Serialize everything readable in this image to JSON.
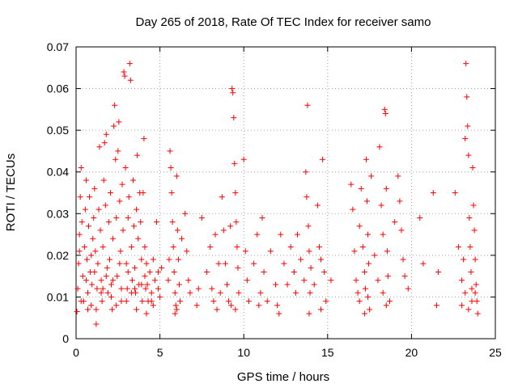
{
  "chart_data": {
    "type": "scatter",
    "title": "Day 265 of 2018, Rate Of TEC Index for receiver samo",
    "xlabel": "GPS time / hours",
    "ylabel": "ROTI / TECUs",
    "xlim": [
      0,
      25
    ],
    "ylim": [
      0,
      0.07
    ],
    "xticks": [
      "0",
      "5",
      "10",
      "15",
      "20",
      "25"
    ],
    "yticks": [
      "0",
      "0.01",
      "0.02",
      "0.03",
      "0.04",
      "0.05",
      "0.06",
      "0.07"
    ],
    "grid": true,
    "marker": "plus",
    "color": "#ff0000",
    "series": [
      {
        "points": [
          [
            0.05,
            0.0065
          ],
          [
            0.1,
            0.012
          ],
          [
            0.15,
            0.018
          ],
          [
            0.2,
            0.025
          ],
          [
            0.25,
            0.034
          ],
          [
            0.3,
            0.041
          ],
          [
            0.35,
            0.028
          ],
          [
            0.4,
            0.015
          ],
          [
            0.45,
            0.009
          ],
          [
            0.5,
            0.022
          ],
          [
            0.55,
            0.031
          ],
          [
            0.6,
            0.038
          ],
          [
            0.65,
            0.019
          ],
          [
            0.7,
            0.011
          ],
          [
            0.75,
            0.027
          ],
          [
            0.8,
            0.034
          ],
          [
            0.85,
            0.016
          ],
          [
            0.9,
            0.008
          ],
          [
            0.95,
            0.013
          ],
          [
            1.0,
            0.024
          ],
          [
            1.05,
            0.029
          ],
          [
            1.1,
            0.036
          ],
          [
            1.15,
            0.021
          ],
          [
            1.2,
            0.0035
          ],
          [
            1.25,
            0.012
          ],
          [
            1.3,
            0.018
          ],
          [
            1.35,
            0.031
          ],
          [
            1.4,
            0.046
          ],
          [
            1.45,
            0.026
          ],
          [
            1.5,
            0.014
          ],
          [
            1.55,
            0.009
          ],
          [
            1.6,
            0.022
          ],
          [
            1.65,
            0.038
          ],
          [
            1.7,
            0.047
          ],
          [
            1.75,
            0.032
          ],
          [
            1.8,
            0.049
          ],
          [
            1.85,
            0.017
          ],
          [
            1.9,
            0.011
          ],
          [
            1.95,
            0.028
          ],
          [
            2.0,
            0.019
          ],
          [
            2.05,
            0.035
          ],
          [
            2.1,
            0.013
          ],
          [
            2.15,
            0.007
          ],
          [
            2.2,
            0.024
          ],
          [
            2.25,
            0.051
          ],
          [
            2.3,
            0.056
          ],
          [
            2.35,
            0.043
          ],
          [
            2.4,
            0.029
          ],
          [
            2.45,
            0.015
          ],
          [
            2.5,
            0.045
          ],
          [
            2.55,
            0.052
          ],
          [
            2.6,
            0.033
          ],
          [
            2.65,
            0.021
          ],
          [
            2.7,
            0.009
          ],
          [
            2.75,
            0.037
          ],
          [
            2.8,
            0.026
          ],
          [
            2.85,
            0.064
          ],
          [
            2.9,
            0.063
          ],
          [
            2.95,
            0.041
          ],
          [
            3.0,
            0.018
          ],
          [
            3.05,
            0.012
          ],
          [
            3.1,
            0.029
          ],
          [
            3.15,
            0.034
          ],
          [
            3.2,
            0.066
          ],
          [
            3.25,
            0.062
          ],
          [
            3.3,
            0.022
          ],
          [
            3.35,
            0.014
          ],
          [
            3.4,
            0.038
          ],
          [
            3.45,
            0.027
          ],
          [
            3.5,
            0.017
          ],
          [
            3.55,
            0.011
          ],
          [
            3.6,
            0.031
          ],
          [
            3.65,
            0.044
          ],
          [
            3.7,
            0.024
          ],
          [
            3.75,
            0.013
          ],
          [
            3.8,
            0.035
          ],
          [
            3.85,
            0.028
          ],
          [
            3.9,
            0.019
          ],
          [
            3.95,
            0.009
          ],
          [
            4.0,
            0.035
          ],
          [
            4.05,
            0.048
          ],
          [
            4.1,
            0.022
          ],
          [
            4.15,
            0.012
          ],
          [
            4.2,
            0.018
          ],
          [
            4.25,
            0.013
          ],
          [
            4.3,
            0.009
          ],
          [
            4.4,
            0.016
          ],
          [
            4.5,
            0.011
          ],
          [
            4.6,
            0.019
          ],
          [
            4.7,
            0.014
          ],
          [
            4.8,
            0.028
          ],
          [
            4.9,
            0.012
          ],
          [
            5.0,
            0.01
          ],
          [
            5.1,
            0.017
          ],
          [
            0.3,
            0.009
          ],
          [
            0.6,
            0.014
          ],
          [
            0.9,
            0.02
          ],
          [
            1.2,
            0.007
          ],
          [
            1.5,
            0.011
          ],
          [
            1.8,
            0.015
          ],
          [
            2.1,
            0.01
          ],
          [
            2.4,
            0.008
          ],
          [
            2.7,
            0.012
          ],
          [
            3.0,
            0.009
          ],
          [
            3.3,
            0.011
          ],
          [
            3.6,
            0.007
          ],
          [
            3.9,
            0.013
          ],
          [
            4.2,
            0.006
          ],
          [
            4.5,
            0.009
          ],
          [
            0.2,
            0.021
          ],
          [
            0.7,
            0.007
          ],
          [
            1.1,
            0.016
          ],
          [
            1.6,
            0.012
          ],
          [
            2.2,
            0.014
          ],
          [
            2.6,
            0.018
          ],
          [
            3.1,
            0.016
          ],
          [
            3.5,
            0.012
          ],
          [
            4.1,
            0.015
          ],
          [
            4.6,
            0.008
          ],
          [
            4.9,
            0.016
          ],
          [
            5.6,
            0.045
          ],
          [
            5.65,
            0.041
          ],
          [
            5.7,
            0.035
          ],
          [
            5.75,
            0.028
          ],
          [
            5.8,
            0.022
          ],
          [
            5.85,
            0.016
          ],
          [
            5.9,
            0.011
          ],
          [
            5.95,
            0.008
          ],
          [
            6.0,
            0.039
          ],
          [
            6.05,
            0.026
          ],
          [
            6.1,
            0.019
          ],
          [
            6.15,
            0.013
          ],
          [
            6.2,
            0.009
          ],
          [
            5.5,
            0.014
          ],
          [
            5.55,
            0.019
          ],
          [
            6.3,
            0.024
          ],
          [
            6.5,
            0.03
          ],
          [
            6.6,
            0.021
          ],
          [
            6.7,
            0.014
          ],
          [
            6.8,
            0.011
          ],
          [
            7.2,
            0.008
          ],
          [
            7.3,
            0.012
          ],
          [
            7.5,
            0.029
          ],
          [
            7.8,
            0.016
          ],
          [
            8.0,
            0.022
          ],
          [
            8.1,
            0.012
          ],
          [
            8.2,
            0.009
          ],
          [
            8.3,
            0.025
          ],
          [
            8.5,
            0.018
          ],
          [
            8.6,
            0.011
          ],
          [
            8.7,
            0.034
          ],
          [
            8.8,
            0.026
          ],
          [
            8.9,
            0.018
          ],
          [
            9.0,
            0.013
          ],
          [
            9.1,
            0.009
          ],
          [
            9.2,
            0.027
          ],
          [
            9.3,
            0.06
          ],
          [
            9.35,
            0.059
          ],
          [
            9.4,
            0.053
          ],
          [
            9.45,
            0.042
          ],
          [
            9.5,
            0.035
          ],
          [
            9.55,
            0.028
          ],
          [
            9.6,
            0.022
          ],
          [
            9.65,
            0.017
          ],
          [
            9.7,
            0.011
          ],
          [
            9.25,
            0.008
          ],
          [
            10.0,
            0.043
          ],
          [
            10.1,
            0.021
          ],
          [
            10.2,
            0.014
          ],
          [
            10.3,
            0.009
          ],
          [
            10.6,
            0.018
          ],
          [
            10.8,
            0.025
          ],
          [
            11.0,
            0.011
          ],
          [
            11.1,
            0.029
          ],
          [
            11.2,
            0.016
          ],
          [
            11.4,
            0.009
          ],
          [
            11.6,
            0.021
          ],
          [
            11.9,
            0.013
          ],
          [
            12.0,
            0.008
          ],
          [
            12.2,
            0.025
          ],
          [
            12.4,
            0.018
          ],
          [
            12.6,
            0.013
          ],
          [
            12.8,
            0.022
          ],
          [
            13.0,
            0.016
          ],
          [
            13.1,
            0.011
          ],
          [
            13.2,
            0.025
          ],
          [
            13.4,
            0.019
          ],
          [
            13.6,
            0.014
          ],
          [
            13.7,
            0.04
          ],
          [
            13.75,
            0.034
          ],
          [
            13.8,
            0.056
          ],
          [
            13.85,
            0.027
          ],
          [
            13.9,
            0.021
          ],
          [
            13.95,
            0.011
          ],
          [
            14.0,
            0.017
          ],
          [
            14.2,
            0.013
          ],
          [
            14.4,
            0.032
          ],
          [
            14.5,
            0.022
          ],
          [
            14.6,
            0.019
          ],
          [
            14.7,
            0.043
          ],
          [
            14.8,
            0.016
          ],
          [
            14.9,
            0.009
          ],
          [
            15.2,
            0.014
          ],
          [
            16.4,
            0.037
          ],
          [
            16.5,
            0.031
          ],
          [
            16.6,
            0.021
          ],
          [
            16.7,
            0.014
          ],
          [
            16.8,
            0.011
          ],
          [
            16.9,
            0.027
          ],
          [
            17.0,
            0.036
          ],
          [
            17.1,
            0.022
          ],
          [
            17.2,
            0.016
          ],
          [
            17.25,
            0.012
          ],
          [
            17.3,
            0.043
          ],
          [
            17.35,
            0.033
          ],
          [
            17.4,
            0.025
          ],
          [
            17.45,
            0.018
          ],
          [
            17.5,
            0.007
          ],
          [
            17.6,
            0.039
          ],
          [
            17.8,
            0.02
          ],
          [
            18.0,
            0.014
          ],
          [
            18.1,
            0.046
          ],
          [
            18.2,
            0.032
          ],
          [
            18.3,
            0.025
          ],
          [
            18.4,
            0.055
          ],
          [
            18.45,
            0.054
          ],
          [
            18.5,
            0.036
          ],
          [
            18.55,
            0.021
          ],
          [
            18.6,
            0.015
          ],
          [
            18.7,
            0.009
          ],
          [
            19.0,
            0.028
          ],
          [
            19.2,
            0.039
          ],
          [
            19.3,
            0.033
          ],
          [
            19.4,
            0.026
          ],
          [
            19.5,
            0.019
          ],
          [
            19.6,
            0.015
          ],
          [
            19.8,
            0.012
          ],
          [
            20.5,
            0.029
          ],
          [
            20.7,
            0.018
          ],
          [
            21.3,
            0.035
          ],
          [
            21.5,
            0.008
          ],
          [
            21.6,
            0.016
          ],
          [
            22.6,
            0.035
          ],
          [
            22.8,
            0.022
          ],
          [
            23.0,
            0.014
          ],
          [
            23.1,
            0.019
          ],
          [
            23.2,
            0.048
          ],
          [
            23.25,
            0.066
          ],
          [
            23.3,
            0.058
          ],
          [
            23.35,
            0.051
          ],
          [
            23.4,
            0.044
          ],
          [
            23.45,
            0.029
          ],
          [
            23.5,
            0.022
          ],
          [
            23.55,
            0.016
          ],
          [
            23.6,
            0.012
          ],
          [
            23.65,
            0.041
          ],
          [
            23.7,
            0.032
          ],
          [
            23.75,
            0.026
          ],
          [
            23.8,
            0.019
          ],
          [
            23.85,
            0.013
          ],
          [
            23.9,
            0.009
          ],
          [
            23.95,
            0.006
          ],
          [
            23.0,
            0.008
          ],
          [
            23.2,
            0.011
          ],
          [
            23.4,
            0.007
          ],
          [
            23.6,
            0.009
          ],
          [
            23.8,
            0.011
          ],
          [
            16.9,
            0.009
          ],
          [
            17.2,
            0.006
          ],
          [
            17.4,
            0.01
          ],
          [
            18.3,
            0.011
          ],
          [
            18.5,
            0.008
          ],
          [
            14.6,
            0.007
          ],
          [
            13.9,
            0.006
          ],
          [
            9.5,
            0.007
          ],
          [
            6.0,
            0.007
          ],
          [
            5.9,
            0.006
          ],
          [
            8.4,
            0.007
          ],
          [
            10.9,
            0.008
          ],
          [
            12.1,
            0.006
          ]
        ]
      }
    ]
  }
}
